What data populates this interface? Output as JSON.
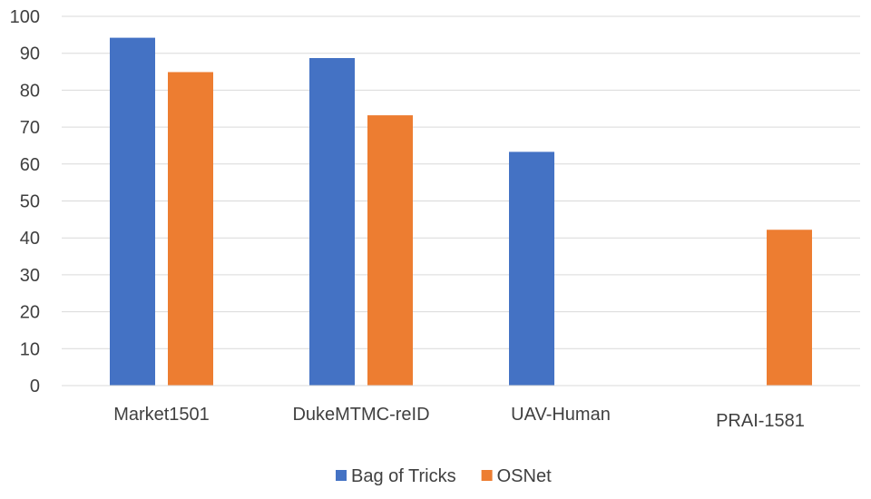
{
  "chart_data": {
    "type": "bar",
    "categories": [
      "Market1501",
      "DukeMTMC-reID",
      "UAV-Human",
      "PRAI-1581"
    ],
    "series": [
      {
        "name": "Bag of Tricks",
        "color": "#4472c4",
        "values": [
          94.2,
          88.7,
          63.3,
          null
        ]
      },
      {
        "name": "OSNet",
        "color": "#ed7d31",
        "values": [
          84.9,
          73.2,
          null,
          42.2
        ]
      }
    ],
    "ylim": [
      0,
      100
    ],
    "yticks": [
      0,
      10,
      20,
      30,
      40,
      50,
      60,
      70,
      80,
      90,
      100
    ],
    "grid": true,
    "legend": "bottom-center",
    "title": "",
    "xlabel": "",
    "ylabel": ""
  }
}
